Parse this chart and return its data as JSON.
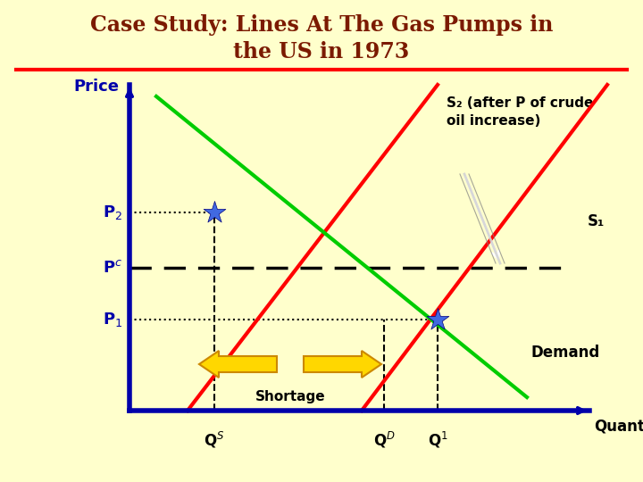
{
  "title_line1": "Case Study: Lines At The Gas Pumps in",
  "title_line2": "the US in 1973",
  "title_color": "#7B1A00",
  "background_color": "#FFFFCC",
  "red_line_color": "#FF0000",
  "green_line_color": "#00CC00",
  "blue_axis_color": "#0000AA",
  "price_label_color": "#0000AA",
  "s2_label_line1": "S₂ (after P of crude",
  "s2_label_line2": "oil increase)",
  "s1_label": "S₁",
  "demand_label": "Demand",
  "shortage_label": "Shortage",
  "quantity_label": "Quantity",
  "price_ylabel": "Price"
}
